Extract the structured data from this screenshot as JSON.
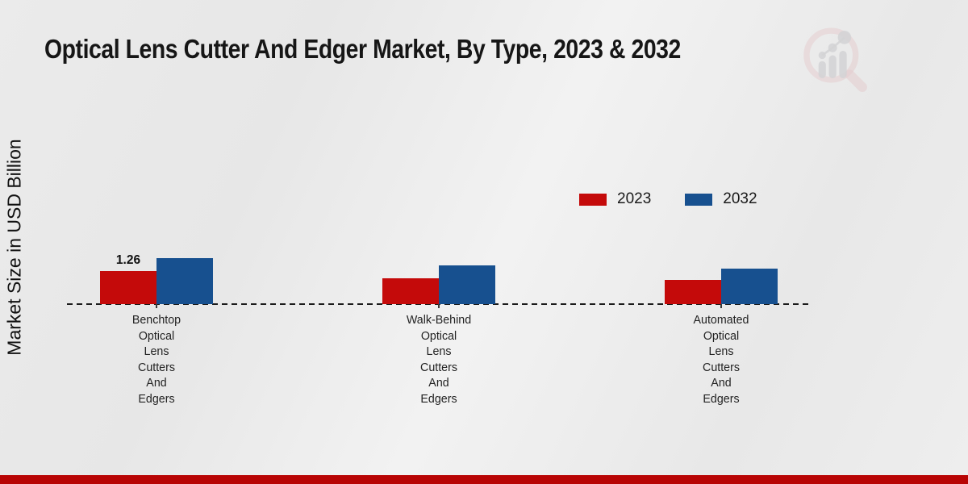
{
  "page": {
    "title": "Optical Lens Cutter And Edger Market, By Type, 2023 & 2032",
    "y_axis_label": "Market Size in USD Billion"
  },
  "colors": {
    "series_2023": "#c40a0a",
    "series_2032": "#17508f",
    "bottom_bar": "#b80404",
    "background": "#e9e9e9",
    "text": "#1a1a1a"
  },
  "legend": {
    "items": [
      {
        "label": "2023",
        "color": "#c40a0a"
      },
      {
        "label": "2032",
        "color": "#17508f"
      }
    ]
  },
  "chart_data": {
    "type": "bar",
    "title": "Optical Lens Cutter And Edger Market, By Type, 2023 & 2032",
    "ylabel": "Market Size in USD Billion",
    "xlabel": "",
    "unit": "USD Billion",
    "categories": [
      "Benchtop Optical Lens Cutters And Edgers",
      "Walk-Behind Optical Lens Cutters And Edgers",
      "Automated Optical Lens Cutters And Edgers"
    ],
    "series": [
      {
        "name": "2023",
        "color": "#c40a0a",
        "values": [
          1.26,
          0.98,
          0.92
        ]
      },
      {
        "name": "2032",
        "color": "#17508f",
        "values": [
          1.75,
          1.48,
          1.35
        ]
      }
    ],
    "data_labels": [
      {
        "series": "2023",
        "category_index": 0,
        "text": "1.26"
      }
    ],
    "baseline": "dashed",
    "grid": false,
    "legend_position": "upper-right",
    "ylim": [
      0,
      2.2
    ]
  },
  "watermark": {
    "name": "market-research-future-logo"
  }
}
